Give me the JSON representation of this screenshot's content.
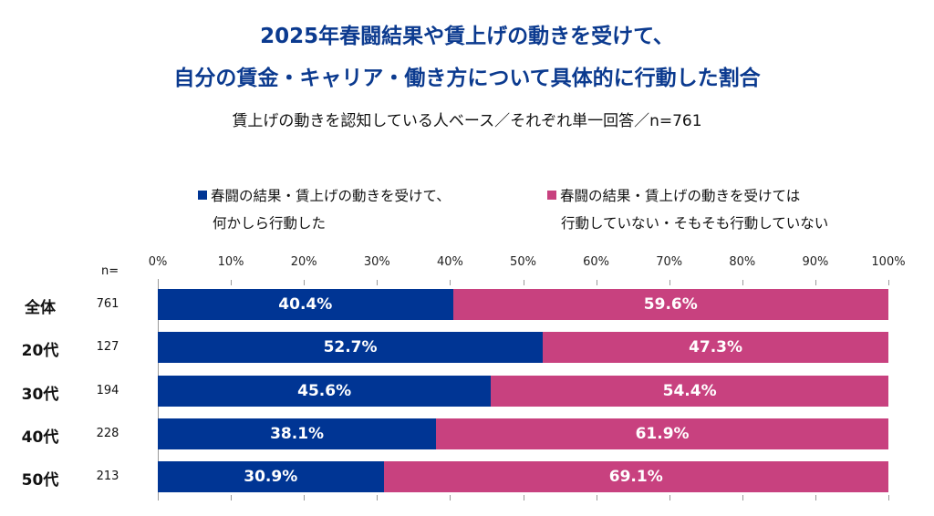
{
  "title_line1": "2025年春闘結果や賃上げの動きを受けて、",
  "title_line2": "自分の賃金・キャリア・働き方について具体的に行動した割合",
  "subtitle": "賃上げの動きを認知している人ベース／それぞれ単一回答／n=761",
  "chart_data": {
    "type": "bar",
    "stacked": true,
    "orientation": "horizontal",
    "xlim": [
      0,
      100
    ],
    "x_ticks": [
      "0%",
      "10%",
      "20%",
      "30%",
      "40%",
      "50%",
      "60%",
      "70%",
      "80%",
      "90%",
      "100%"
    ],
    "n_header": "n=",
    "categories": [
      "全体",
      "20代",
      "30代",
      "40代",
      "50代"
    ],
    "n_values": [
      "761",
      "127",
      "194",
      "228",
      "213"
    ],
    "legend_placement": "top",
    "series": [
      {
        "name_line1": "春闘の結果・賃上げの動きを受けて、",
        "name_line2": "何かしら行動した",
        "color": "#003594",
        "values": [
          40.4,
          52.7,
          45.6,
          38.1,
          30.9
        ],
        "labels": [
          "40.4%",
          "52.7%",
          "45.6%",
          "38.1%",
          "30.9%"
        ]
      },
      {
        "name_line1": "春闘の結果・賃上げの動きを受けては",
        "name_line2": "行動していない・そもそも行動していない",
        "color": "#c8417f",
        "values": [
          59.6,
          47.3,
          54.4,
          61.9,
          69.1
        ],
        "labels": [
          "59.6%",
          "47.3%",
          "54.4%",
          "61.9%",
          "69.1%"
        ]
      }
    ]
  }
}
